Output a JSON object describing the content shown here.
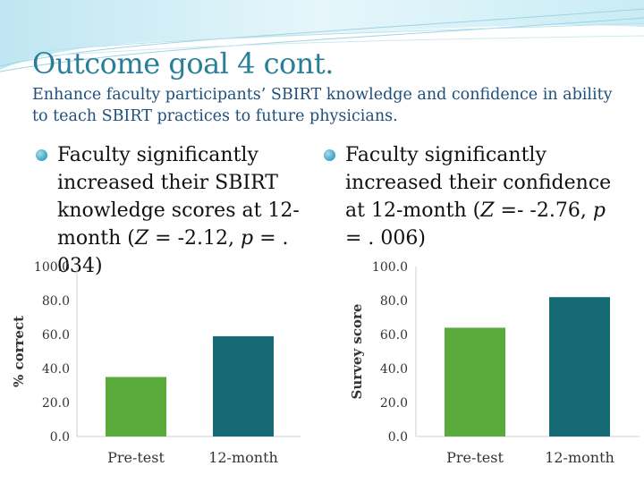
{
  "title": "Outcome goal 4 cont.",
  "subtitle": "Enhance faculty participants’ SBIRT knowledge and confidence in ability to teach SBIRT practices to future physicians.",
  "bullets": {
    "left": {
      "line1": "Faculty significantly",
      "line2": "increased their SBIRT",
      "line3": "knowledge scores at 12-",
      "line4_pre": "month (",
      "Z": "Z",
      "mid1": " = -2.12, ",
      "p": "p",
      "mid2": " = . 034)"
    },
    "right": {
      "line1": "Faculty significantly",
      "line2": "increased their confidence",
      "line3_pre": "at 12-month (",
      "Z": "Z",
      "line3_mid": " =- -2.76, ",
      "p": "p",
      "line4": "= . 006)"
    }
  },
  "colors": {
    "title": "#2a7f98",
    "subtitle": "#1f4f7a",
    "pretest_bar": "#5aaa3c",
    "month12_bar": "#166a73",
    "axis": "#cfcfcf"
  },
  "chart_data": [
    {
      "type": "bar",
      "categories": [
        "Pre-test",
        "12-month"
      ],
      "values": [
        35,
        59
      ],
      "ylabel": "% correct",
      "ylim": [
        0,
        100
      ],
      "yticks": [
        "0.0",
        "20.0",
        "40.0",
        "60.0",
        "80.0",
        "100.0"
      ],
      "grid": false
    },
    {
      "type": "bar",
      "categories": [
        "Pre-test",
        "12-month"
      ],
      "values": [
        64,
        82
      ],
      "ylabel": "Survey score",
      "ylim": [
        0,
        100
      ],
      "yticks": [
        "0.0",
        "20.0",
        "40.0",
        "60.0",
        "80.0",
        "100.0"
      ],
      "grid": false
    }
  ]
}
